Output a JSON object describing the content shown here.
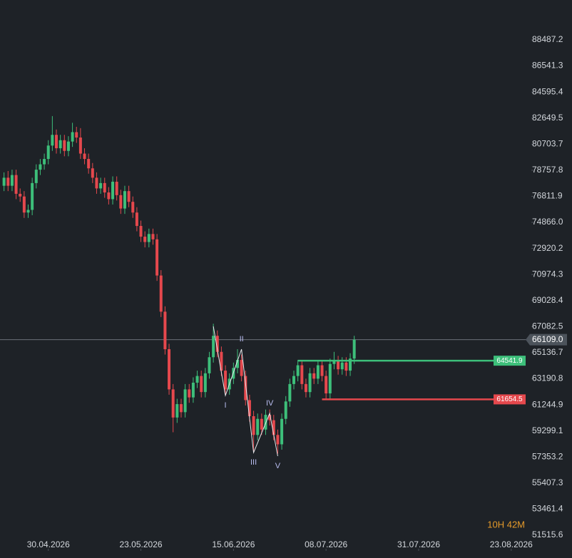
{
  "chart_data": {
    "type": "candlestick",
    "xlim": [
      "18.04.2026",
      "28.08.2026"
    ],
    "xticks": [
      "30.04.2026",
      "23.05.2026",
      "15.06.2026",
      "08.07.2026",
      "31.07.2026",
      "23.08.2026"
    ],
    "ylim": [
      50505,
      91466
    ],
    "yticks": [
      88487.2,
      86541.3,
      84595.4,
      82649.5,
      80703.7,
      78757.8,
      76811.9,
      {
        "value": 74866,
        "label": "74866.0"
      },
      72920.2,
      70974.3,
      69028.4,
      67082.5,
      65136.7,
      63190.8,
      61244.9,
      59299.1,
      57353.2,
      55407.3,
      53461.4,
      51515.6
    ],
    "up_color": "#3dbf7a",
    "down_color": "#e5484d",
    "x": [
      "19.04.2026",
      "20.04.2026",
      "21.04.2026",
      "22.04.2026",
      "23.04.2026",
      "24.04.2026",
      "25.04.2026",
      "26.04.2026",
      "27.04.2026",
      "28.04.2026",
      "29.04.2026",
      "30.04.2026",
      "01.05.2026",
      "02.05.2026",
      "03.05.2026",
      "04.05.2026",
      "05.05.2026",
      "06.05.2026",
      "07.05.2026",
      "08.05.2026",
      "09.05.2026",
      "10.05.2026",
      "11.05.2026",
      "12.05.2026",
      "13.05.2026",
      "14.05.2026",
      "15.05.2026",
      "16.05.2026",
      "17.05.2026",
      "18.05.2026",
      "19.05.2026",
      "20.05.2026",
      "21.05.2026",
      "22.05.2026",
      "23.05.2026",
      "24.05.2026",
      "25.05.2026",
      "26.05.2026",
      "27.05.2026",
      "28.05.2026",
      "29.05.2026",
      "30.05.2026",
      "31.05.2026",
      "01.06.2026",
      "02.06.2026",
      "03.06.2026",
      "04.06.2026",
      "05.06.2026",
      "06.06.2026",
      "07.06.2026",
      "08.06.2026",
      "09.06.2026",
      "10.06.2026",
      "11.06.2026",
      "12.06.2026",
      "13.06.2026",
      "14.06.2026",
      "15.06.2026",
      "16.06.2026",
      "17.06.2026",
      "18.06.2026",
      "19.06.2026",
      "20.06.2026",
      "21.06.2026",
      "22.06.2026",
      "23.06.2026",
      "24.06.2026",
      "25.06.2026",
      "26.06.2026",
      "27.06.2026",
      "28.06.2026",
      "29.06.2026",
      "30.06.2026",
      "01.07.2026",
      "02.07.2026",
      "03.07.2026",
      "04.07.2026",
      "05.07.2026",
      "06.07.2026",
      "07.07.2026",
      "08.07.2026",
      "09.07.2026",
      "10.07.2026",
      "11.07.2026",
      "12.07.2026",
      "13.07.2026",
      "14.07.2026",
      "15.07.2026"
    ],
    "candles": [
      [
        77600,
        78600,
        77200,
        78200
      ],
      [
        78200,
        78700,
        77200,
        77600
      ],
      [
        77600,
        78800,
        77200,
        78400
      ],
      [
        78400,
        78800,
        76600,
        77000
      ],
      [
        77000,
        77400,
        76400,
        76800
      ],
      [
        76800,
        77200,
        75200,
        75600
      ],
      [
        75600,
        76200,
        75200,
        75800
      ],
      [
        75800,
        78200,
        75400,
        77800
      ],
      [
        77800,
        79200,
        77400,
        78800
      ],
      [
        78800,
        79600,
        78400,
        79200
      ],
      [
        79200,
        80000,
        78800,
        79600
      ],
      [
        79600,
        81000,
        79200,
        80600
      ],
      [
        80600,
        82800,
        80200,
        81400
      ],
      [
        81400,
        81800,
        80000,
        80400
      ],
      [
        80400,
        81400,
        80000,
        81000
      ],
      [
        81000,
        81400,
        79800,
        80200
      ],
      [
        80200,
        81300,
        79800,
        80900
      ],
      [
        80900,
        82300,
        80500,
        81600
      ],
      [
        81600,
        82000,
        80800,
        81200
      ],
      [
        81200,
        81900,
        79600,
        80000
      ],
      [
        80000,
        80400,
        79200,
        79600
      ],
      [
        79600,
        80000,
        78500,
        78900
      ],
      [
        78900,
        79300,
        77800,
        78200
      ],
      [
        78200,
        78600,
        77000,
        77400
      ],
      [
        77400,
        78200,
        77000,
        77800
      ],
      [
        77800,
        78200,
        76700,
        77100
      ],
      [
        77100,
        77500,
        76200,
        76600
      ],
      [
        76600,
        78300,
        76200,
        77900
      ],
      [
        77900,
        78300,
        76500,
        76900
      ],
      [
        76900,
        77300,
        75500,
        75900
      ],
      [
        75900,
        77600,
        75500,
        77200
      ],
      [
        77200,
        77600,
        76000,
        76400
      ],
      [
        76400,
        76800,
        75200,
        75600
      ],
      [
        75600,
        76000,
        74200,
        74600
      ],
      [
        74600,
        75000,
        73400,
        73800
      ],
      [
        73800,
        74200,
        73000,
        73400
      ],
      [
        73400,
        74400,
        73000,
        74000
      ],
      [
        74000,
        74400,
        73200,
        73600
      ],
      [
        73600,
        74000,
        70500,
        70900
      ],
      [
        70900,
        71300,
        67800,
        68200
      ],
      [
        68200,
        68600,
        65000,
        65400
      ],
      [
        65400,
        65800,
        62000,
        62400
      ],
      [
        62400,
        62800,
        59200,
        60300
      ],
      [
        60300,
        61700,
        59900,
        61300
      ],
      [
        61300,
        61700,
        60300,
        60700
      ],
      [
        60700,
        62800,
        60300,
        62400
      ],
      [
        62400,
        62800,
        61400,
        61800
      ],
      [
        61800,
        63300,
        61400,
        62900
      ],
      [
        62900,
        63800,
        62500,
        63400
      ],
      [
        63400,
        63800,
        61800,
        62200
      ],
      [
        62200,
        64000,
        61800,
        63600
      ],
      [
        63600,
        65200,
        63200,
        64800
      ],
      [
        64800,
        67300,
        64400,
        66400
      ],
      [
        66400,
        66800,
        64800,
        65200
      ],
      [
        65200,
        65600,
        63400,
        63800
      ],
      [
        63800,
        64200,
        62000,
        62400
      ],
      [
        62400,
        63600,
        62000,
        63200
      ],
      [
        63200,
        64400,
        62800,
        64000
      ],
      [
        64000,
        65400,
        63600,
        64600
      ],
      [
        64600,
        65000,
        63000,
        63400
      ],
      [
        63400,
        63800,
        61200,
        61600
      ],
      [
        61600,
        62000,
        60000,
        60400
      ],
      [
        60400,
        60800,
        57800,
        59000
      ],
      [
        59000,
        60600,
        58600,
        60200
      ],
      [
        60200,
        60600,
        59000,
        59400
      ],
      [
        59400,
        60900,
        59000,
        60500
      ],
      [
        60500,
        60900,
        59700,
        60100
      ],
      [
        60100,
        60500,
        58600,
        59000
      ],
      [
        59000,
        59400,
        57600,
        58300
      ],
      [
        58300,
        60600,
        57900,
        60200
      ],
      [
        60200,
        61900,
        59800,
        61500
      ],
      [
        61500,
        63200,
        61100,
        62800
      ],
      [
        62800,
        63800,
        62400,
        63400
      ],
      [
        63400,
        64600,
        63000,
        64200
      ],
      [
        64200,
        64600,
        62400,
        62800
      ],
      [
        62800,
        63200,
        61800,
        62200
      ],
      [
        62200,
        64000,
        61800,
        63600
      ],
      [
        63600,
        64000,
        62800,
        63200
      ],
      [
        63200,
        64600,
        62800,
        64200
      ],
      [
        64200,
        64600,
        63000,
        63400
      ],
      [
        63400,
        63800,
        61700,
        62100
      ],
      [
        62100,
        64700,
        61700,
        64300
      ],
      [
        64300,
        65200,
        63900,
        64500
      ],
      [
        64500,
        64900,
        63500,
        63900
      ],
      [
        63900,
        64800,
        63500,
        64400
      ],
      [
        64400,
        64800,
        63400,
        63800
      ],
      [
        63800,
        65100,
        63400,
        64700
      ],
      [
        64700,
        66400,
        64300,
        66109
      ]
    ],
    "current_price": {
      "value": 66109,
      "label": "66109.0"
    },
    "levels": [
      {
        "value": 64541.9,
        "start": "01.07.2026",
        "color": "#3dbf7a"
      },
      {
        "value": 61654.5,
        "start": "07.07.2026",
        "color": "#e5484d"
      }
    ],
    "waves": {
      "x": [
        "10.06.2026",
        "13.06.2026",
        "17.06.2026",
        "20.06.2026",
        "24.06.2026",
        "26.06.2026"
      ],
      "values": [
        67101,
        61940,
        65399,
        57684,
        60610,
        57420
      ],
      "labels": [
        null,
        "I",
        "II",
        "III",
        "IV",
        "V"
      ]
    },
    "timer": "10H 42M"
  }
}
